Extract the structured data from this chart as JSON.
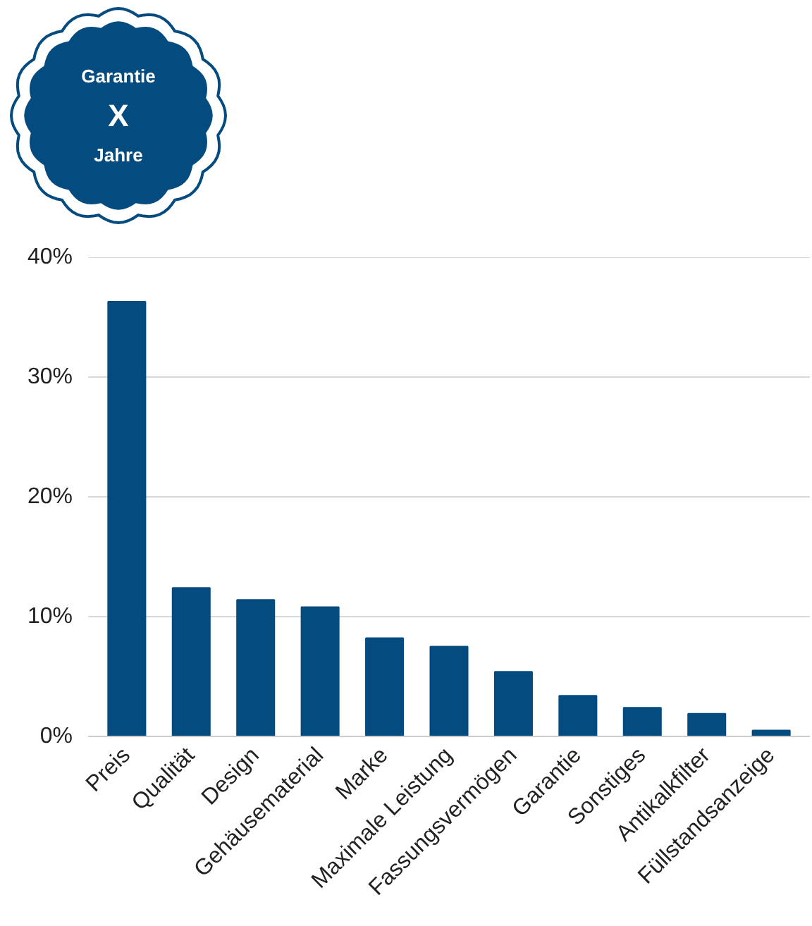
{
  "chart_data": {
    "type": "bar",
    "categories": [
      "Preis",
      "Qualität",
      "Design",
      "Gehäusematerial",
      "Marke",
      "Maximale Leistung",
      "Fassungsvermögen",
      "Garantie",
      "Sonstiges",
      "Antikalkfilter",
      "Füllstandsanzeige"
    ],
    "values": [
      36.3,
      12.4,
      11.4,
      10.8,
      8.2,
      7.5,
      5.4,
      3.4,
      2.4,
      1.9,
      0.5
    ],
    "color": "#044b80",
    "ylim": [
      0,
      40
    ],
    "yticks": [
      {
        "value": 0,
        "label": "0%"
      },
      {
        "value": 10,
        "label": "10%"
      },
      {
        "value": 20,
        "label": "20%"
      },
      {
        "value": 30,
        "label": "30%"
      },
      {
        "value": 40,
        "label": "40%"
      }
    ],
    "grid": "y",
    "annotations": [
      "Garantie",
      "X",
      "Jahre"
    ]
  }
}
